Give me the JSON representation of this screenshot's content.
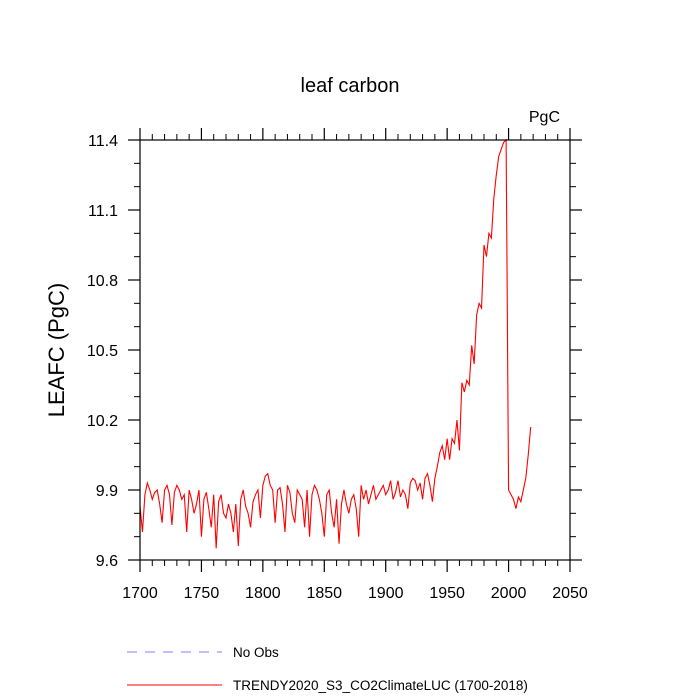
{
  "chart_data": {
    "type": "line",
    "title": "leaf carbon",
    "units_label": "PgC",
    "ylabel": "LEAFC  (PgC)",
    "xlabel": "",
    "xlim": [
      1700,
      2050
    ],
    "ylim": [
      9.6,
      11.4
    ],
    "xticks": [
      1700,
      1750,
      1800,
      1850,
      1900,
      1950,
      2000,
      2050
    ],
    "xtick_labels": [
      "1700",
      "1750",
      "1800",
      "1850",
      "1900",
      "1950",
      "2000",
      "2050"
    ],
    "yticks": [
      9.6,
      9.9,
      10.2,
      10.5,
      10.8,
      11.1,
      11.4
    ],
    "ytick_labels": [
      "9.6",
      "9.9",
      "10.2",
      "10.5",
      "10.8",
      "11.1",
      "11.4"
    ],
    "grid": false,
    "series": [
      {
        "name": "TRENDY2020_S3_CO2ClimateLUC (1700-2018)",
        "color": "#ff0000",
        "style": "solid",
        "x": [
          1700,
          1702,
          1704,
          1706,
          1708,
          1710,
          1712,
          1714,
          1716,
          1718,
          1720,
          1722,
          1724,
          1726,
          1728,
          1730,
          1732,
          1734,
          1736,
          1738,
          1740,
          1742,
          1744,
          1746,
          1748,
          1750,
          1752,
          1754,
          1756,
          1758,
          1760,
          1762,
          1764,
          1766,
          1768,
          1770,
          1772,
          1774,
          1776,
          1778,
          1780,
          1782,
          1784,
          1786,
          1788,
          1790,
          1792,
          1794,
          1796,
          1798,
          1800,
          1802,
          1804,
          1806,
          1808,
          1810,
          1812,
          1814,
          1816,
          1818,
          1820,
          1822,
          1824,
          1826,
          1828,
          1830,
          1832,
          1834,
          1836,
          1838,
          1840,
          1842,
          1844,
          1846,
          1848,
          1850,
          1852,
          1854,
          1856,
          1858,
          1860,
          1862,
          1864,
          1866,
          1868,
          1870,
          1872,
          1874,
          1876,
          1878,
          1880,
          1882,
          1884,
          1886,
          1888,
          1890,
          1892,
          1894,
          1896,
          1898,
          1900,
          1902,
          1904,
          1906,
          1908,
          1910,
          1912,
          1914,
          1916,
          1918,
          1920,
          1922,
          1924,
          1926,
          1928,
          1930,
          1932,
          1934,
          1936,
          1938,
          1940,
          1942,
          1944,
          1946,
          1948,
          1950,
          1952,
          1954,
          1956,
          1958,
          1960,
          1962,
          1964,
          1966,
          1968,
          1970,
          1972,
          1974,
          1976,
          1978,
          1980,
          1982,
          1984,
          1986,
          1988,
          1990,
          1992,
          1994,
          1996,
          1998,
          2000,
          2002,
          2004,
          2006,
          2008,
          2010,
          2012,
          2014,
          2016,
          2018
        ],
        "values": [
          9.83,
          9.72,
          9.88,
          9.93,
          9.9,
          9.86,
          9.89,
          9.9,
          9.84,
          9.76,
          9.9,
          9.92,
          9.88,
          9.75,
          9.89,
          9.92,
          9.9,
          9.86,
          9.88,
          9.72,
          9.9,
          9.86,
          9.8,
          9.84,
          9.9,
          9.7,
          9.86,
          9.89,
          9.82,
          9.74,
          9.88,
          9.65,
          9.85,
          9.88,
          9.8,
          9.78,
          9.84,
          9.8,
          9.72,
          9.84,
          9.66,
          9.86,
          9.9,
          9.83,
          9.8,
          9.74,
          9.85,
          9.88,
          9.9,
          9.78,
          9.92,
          9.96,
          9.97,
          9.92,
          9.9,
          9.76,
          9.9,
          9.91,
          9.84,
          9.72,
          9.92,
          9.89,
          9.8,
          9.76,
          9.9,
          9.88,
          9.86,
          9.74,
          9.9,
          9.7,
          9.88,
          9.92,
          9.9,
          9.86,
          9.8,
          9.7,
          9.88,
          9.9,
          9.8,
          9.74,
          9.86,
          9.67,
          9.84,
          9.9,
          9.84,
          9.8,
          9.86,
          9.88,
          9.82,
          9.7,
          9.92,
          9.86,
          9.9,
          9.84,
          9.88,
          9.92,
          9.86,
          9.88,
          9.9,
          9.92,
          9.88,
          9.9,
          9.94,
          9.86,
          9.89,
          9.94,
          9.87,
          9.9,
          9.88,
          9.82,
          9.93,
          9.95,
          9.94,
          9.9,
          9.93,
          9.86,
          9.95,
          9.97,
          9.92,
          9.85,
          9.95,
          10.0,
          10.06,
          10.09,
          10.03,
          10.12,
          10.03,
          10.12,
          10.1,
          10.2,
          10.07,
          10.36,
          10.32,
          10.37,
          10.35,
          10.52,
          10.44,
          10.65,
          10.7,
          10.68,
          10.95,
          10.9,
          11.0,
          10.98,
          11.15,
          11.25,
          11.33,
          11.36,
          11.39,
          11.4,
          9.9,
          9.88,
          9.86,
          9.82,
          9.87,
          9.85,
          9.9,
          9.95,
          10.05,
          10.17
        ]
      },
      {
        "name": "No Obs",
        "color": "#8080ff",
        "style": "dashed",
        "x": [],
        "values": []
      }
    ],
    "legend": [
      {
        "label": "No Obs",
        "color": "#8080ff",
        "style": "dashed"
      },
      {
        "label": "TRENDY2020_S3_CO2ClimateLUC (1700-2018)",
        "color": "#ff0000",
        "style": "solid"
      }
    ]
  }
}
